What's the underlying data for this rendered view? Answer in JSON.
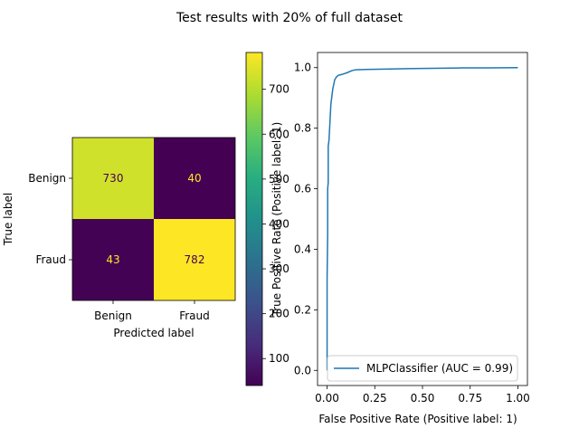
{
  "figure": {
    "suptitle": "Test results with 20% of full dataset"
  },
  "chart_data": [
    {
      "type": "heatmap",
      "xlabel": "Predicted label",
      "ylabel": "True label",
      "x_categories": [
        "Benign",
        "Fraud"
      ],
      "y_categories": [
        "Benign",
        "Fraud"
      ],
      "values": [
        [
          730,
          40
        ],
        [
          43,
          782
        ]
      ],
      "colormap": "viridis",
      "colorbar": {
        "range": [
          40,
          782
        ],
        "ticks": [
          "100",
          "200",
          "300",
          "400",
          "500",
          "600",
          "700"
        ]
      }
    },
    {
      "type": "line",
      "xlabel": "False Positive Rate (Positive label: 1)",
      "ylabel": "True Positive Rate (Positive label: 1)",
      "xlim": [
        -0.05,
        1.05
      ],
      "ylim": [
        -0.05,
        1.05
      ],
      "xticks": [
        "0.00",
        "0.25",
        "0.50",
        "0.75",
        "1.00"
      ],
      "yticks": [
        "0.0",
        "0.2",
        "0.4",
        "0.6",
        "0.8",
        "1.0"
      ],
      "legend": "lower-right",
      "series": [
        {
          "name": "MLPClassifier (AUC = 0.99)",
          "color": "#1f77b4",
          "x": [
            0,
            0,
            0.003,
            0.003,
            0.006,
            0.006,
            0.01,
            0.015,
            0.02,
            0.03,
            0.04,
            0.05,
            0.06,
            0.08,
            0.1,
            0.13,
            0.15,
            0.2,
            0.3,
            0.45,
            0.6,
            0.7,
            0.85,
            1.0
          ],
          "y": [
            0,
            0.3,
            0.45,
            0.6,
            0.62,
            0.74,
            0.76,
            0.82,
            0.88,
            0.93,
            0.96,
            0.97,
            0.975,
            0.978,
            0.982,
            0.99,
            0.993,
            0.994,
            0.995,
            0.997,
            0.998,
            0.999,
            0.999,
            1.0
          ]
        }
      ]
    }
  ]
}
